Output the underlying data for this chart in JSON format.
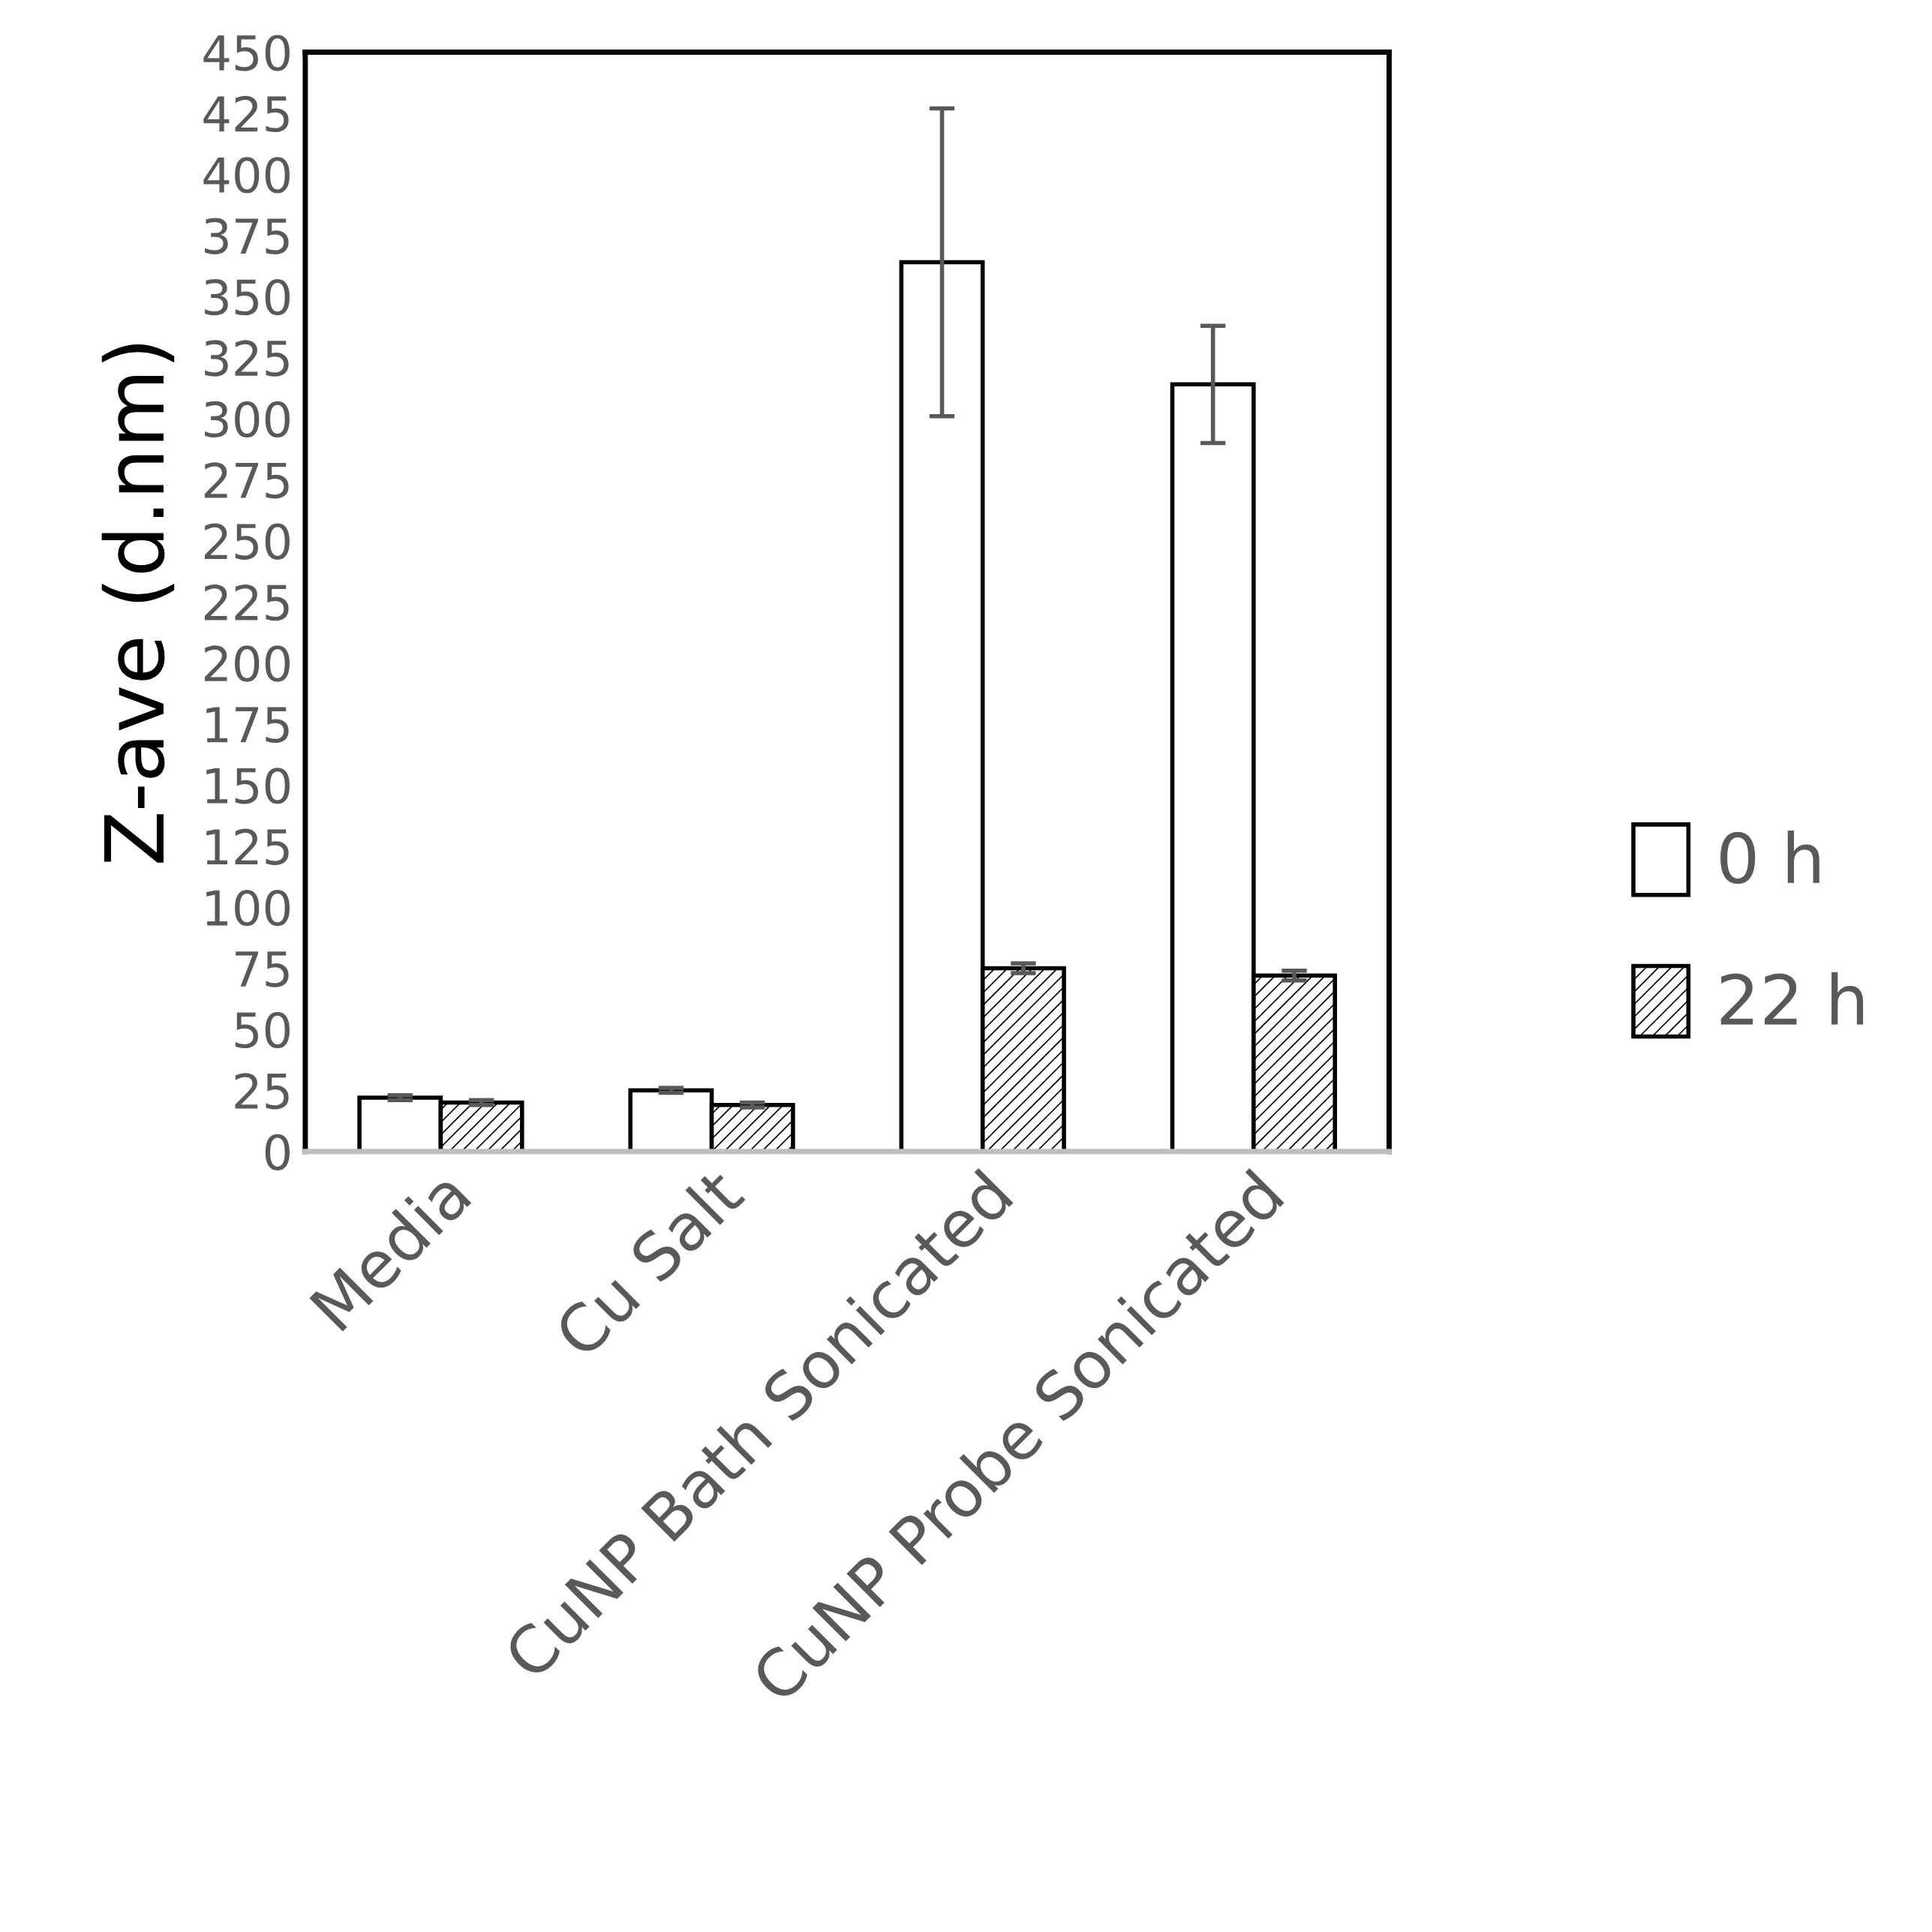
{
  "chart_data": {
    "type": "bar",
    "ylabel": "Z-ave (d.nm)",
    "categories": [
      "Media",
      "Cu Salt",
      "CuNP Bath Sonicated",
      "CuNP Probe Sonicated"
    ],
    "series": [
      {
        "name": "0 h",
        "color": "#ffffff",
        "values": [
          22,
          25,
          364,
          314
        ],
        "errors": [
          1,
          1,
          63,
          24
        ]
      },
      {
        "name": "22 h",
        "color": "#000000",
        "values": [
          20,
          19,
          75,
          72
        ],
        "errors": [
          1,
          1,
          2,
          2
        ]
      }
    ],
    "ylim": [
      0,
      450
    ],
    "yticks": [
      0,
      25,
      50,
      75,
      100,
      125,
      150,
      175,
      200,
      225,
      250,
      275,
      300,
      325,
      350,
      375,
      400,
      425,
      450
    ],
    "grid": false,
    "legend": "right"
  }
}
